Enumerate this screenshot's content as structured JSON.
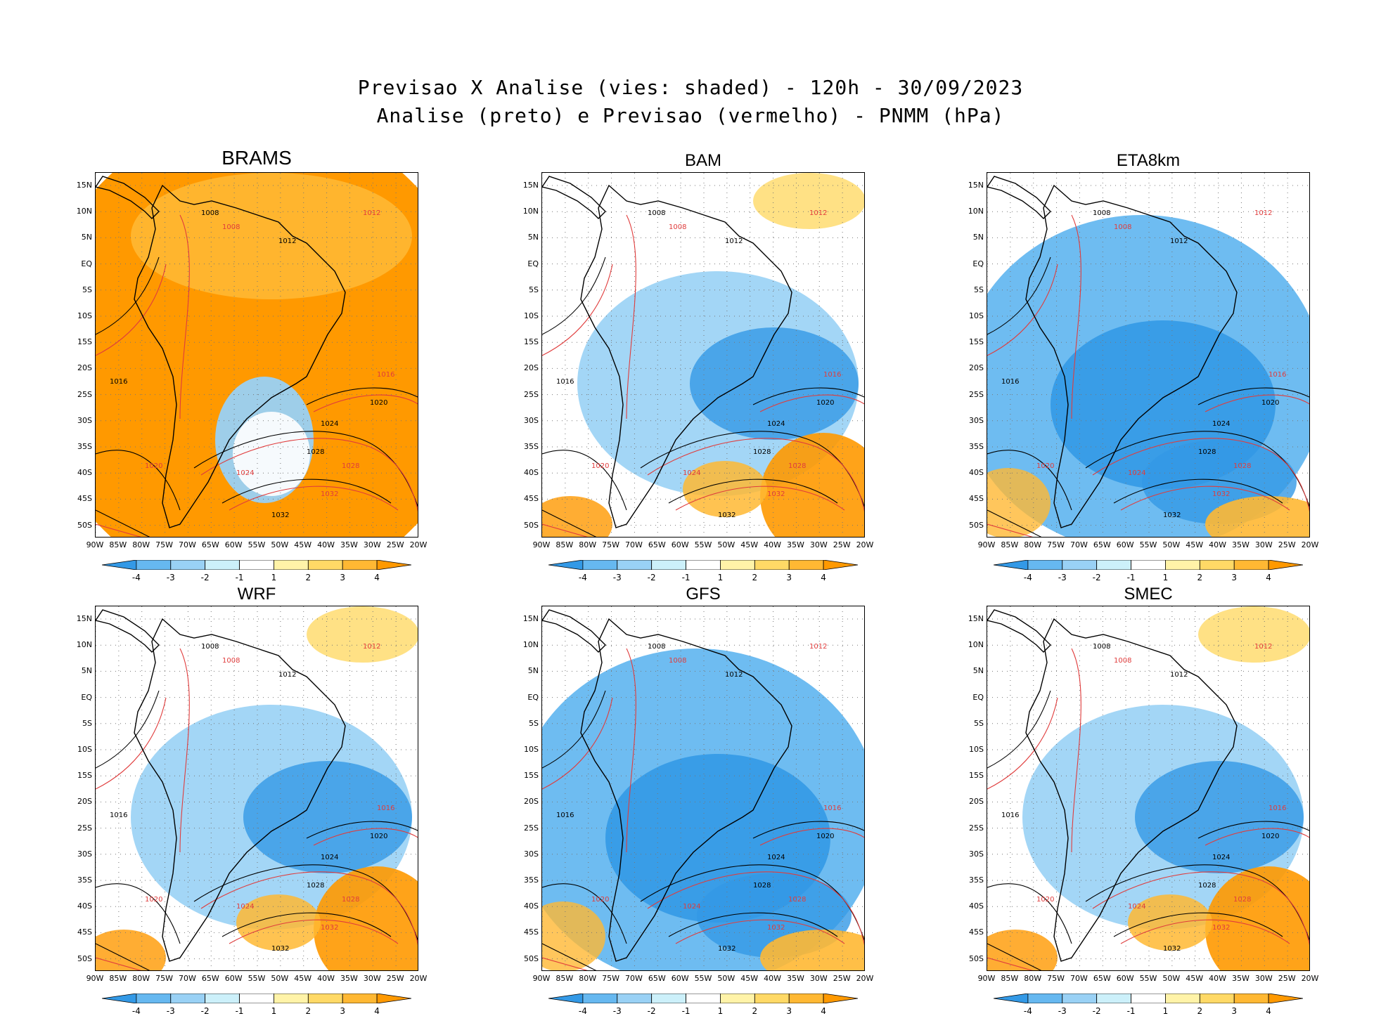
{
  "header": {
    "title_line1": "Previsao X Analise (vies: shaded) - 120h - 30/09/2023",
    "title_line2": "Analise (preto) e Previsao (vermelho) - PNMM (hPa)"
  },
  "panels": [
    {
      "name": "BRAMS",
      "bias": "warm"
    },
    {
      "name": "BAM",
      "bias": "mixed"
    },
    {
      "name": "ETA8km",
      "bias": "cold"
    },
    {
      "name": "WRF",
      "bias": "mixed"
    },
    {
      "name": "GFS",
      "bias": "cold"
    },
    {
      "name": "SMEC",
      "bias": "mixed"
    }
  ],
  "axes": {
    "lat_labels": [
      "15N",
      "10N",
      "5N",
      "EQ",
      "5S",
      "10S",
      "15S",
      "20S",
      "25S",
      "30S",
      "35S",
      "40S",
      "45S",
      "50S"
    ],
    "lon_labels": [
      "90W",
      "85W",
      "80W",
      "75W",
      "70W",
      "65W",
      "60W",
      "55W",
      "50W",
      "45W",
      "40W",
      "35W",
      "30W",
      "25W",
      "20W"
    ]
  },
  "colorbar": {
    "labels": [
      "-4",
      "-3",
      "-2",
      "-1",
      "1",
      "2",
      "3",
      "4"
    ],
    "colors": [
      "#3399e6",
      "#66b8f0",
      "#99d1f5",
      "#ccf0fa",
      "#ffffff",
      "#fff3a8",
      "#ffd966",
      "#ffb833",
      "#ff9900"
    ]
  },
  "isobar_labels": {
    "analysis": [
      "1008",
      "1012",
      "1016",
      "1020",
      "1024",
      "1028",
      "1032"
    ],
    "forecast": [
      "1008",
      "1012",
      "1016",
      "1020",
      "1024",
      "1028",
      "1032"
    ]
  }
}
